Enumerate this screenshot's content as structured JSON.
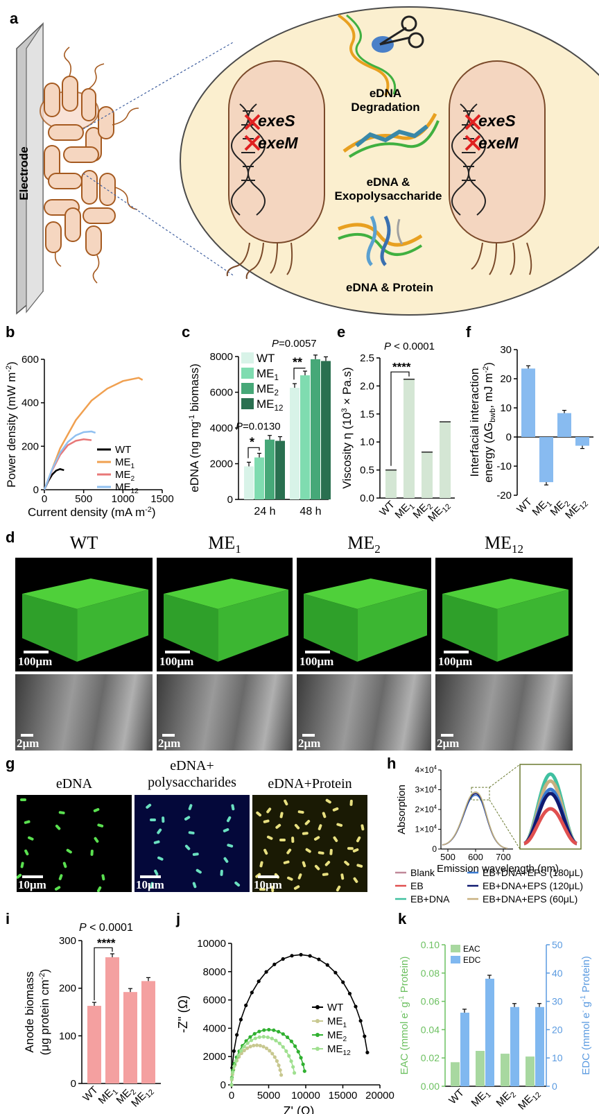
{
  "panels": {
    "a": "a",
    "b": "b",
    "c": "c",
    "d": "d",
    "e": "e",
    "f": "f",
    "g": "g",
    "h": "h",
    "i": "i",
    "j": "j",
    "k": "k"
  },
  "panel_a": {
    "electrode_label": "Electrode",
    "gene1": "exeS",
    "gene2": "exeM",
    "mech1_line1": "eDNA",
    "mech1_line2": "Degradation",
    "mech2_line1": "eDNA &",
    "mech2_line2": "Exopolysaccharide",
    "mech3": "eDNA & Protein"
  },
  "chart_b": {
    "type": "line",
    "ylabel": "Power density (mW m",
    "ylabel_sup": "-2",
    "xlabel": "Current density (mA m",
    "xlabel_sup": "-2",
    "yticks": [
      "0",
      "200",
      "400",
      "600"
    ],
    "xticks": [
      "0",
      "500",
      "1000",
      "1500"
    ],
    "ylim": [
      0,
      600
    ],
    "xlim": [
      0,
      1500
    ],
    "series": [
      {
        "name": "WT",
        "color": "#000000",
        "x": [
          0,
          50,
          100,
          150,
          200,
          250
        ],
        "y": [
          0,
          40,
          70,
          88,
          95,
          90
        ]
      },
      {
        "name": "ME",
        "sub": "1",
        "color": "#f0a050",
        "x": [
          0,
          200,
          400,
          600,
          800,
          1000,
          1200,
          1250
        ],
        "y": [
          0,
          190,
          320,
          410,
          465,
          500,
          515,
          505
        ]
      },
      {
        "name": "ME",
        "sub": "2",
        "color": "#e87878",
        "x": [
          0,
          100,
          200,
          300,
          400,
          500,
          600
        ],
        "y": [
          0,
          90,
          160,
          205,
          225,
          232,
          228
        ]
      },
      {
        "name": "ME",
        "sub": "12",
        "color": "#90c0f0",
        "x": [
          0,
          100,
          200,
          300,
          400,
          500,
          600,
          650
        ],
        "y": [
          0,
          95,
          170,
          220,
          250,
          265,
          268,
          262
        ]
      }
    ]
  },
  "chart_c": {
    "type": "bar",
    "ylabel": "eDNA (ng mg",
    "ylabel_sup": "-1",
    "ylabel_end": " biomass)",
    "categories": [
      "24 h",
      "48 h"
    ],
    "yticks": [
      "0",
      "2000",
      "4000",
      "6000",
      "8000"
    ],
    "ylim": [
      0,
      8000
    ],
    "series": [
      {
        "name": "WT",
        "color": "#d8f3e8",
        "values": [
          1850,
          6250
        ]
      },
      {
        "name": "ME",
        "sub": "1",
        "color": "#7fdcb0",
        "values": [
          2350,
          6950
        ]
      },
      {
        "name": "ME",
        "sub": "2",
        "color": "#46a878",
        "values": [
          3350,
          7850
        ]
      },
      {
        "name": "ME",
        "sub": "12",
        "color": "#2a7050",
        "values": [
          3280,
          7750
        ]
      }
    ],
    "p1": "P",
    "p1_val": "=0.0130",
    "p2": "P",
    "p2_val": "=0.0057",
    "sig1": "*",
    "sig2": "**"
  },
  "chart_e": {
    "type": "bar",
    "ylabel": "Viscosity η (10",
    "ylabel_sup": "3",
    "ylabel_end": " × Pa.s)",
    "categories": [
      {
        "t": "WT",
        "s": ""
      },
      {
        "t": "ME",
        "s": "1"
      },
      {
        "t": "ME",
        "s": "2"
      },
      {
        "t": "ME",
        "s": "12"
      }
    ],
    "values": [
      0.5,
      2.12,
      0.82,
      1.36
    ],
    "yticks": [
      "0.0",
      "0.5",
      "1.0",
      "1.5",
      "2.0",
      "2.5"
    ],
    "ylim": [
      0,
      2.5
    ],
    "color": "#d4e6d4",
    "p": "P",
    "p_val": " < 0.0001",
    "sig": "****"
  },
  "chart_f": {
    "type": "bar",
    "ylabel1": "Interfacial interaction",
    "ylabel2a": "energy (ΔG",
    "ylabel2sub": "bwb",
    "ylabel2b": ", mJ m",
    "ylabel2sup": "-2",
    "ylabel2c": ")",
    "categories": [
      {
        "t": "WT",
        "s": ""
      },
      {
        "t": "ME",
        "s": "1"
      },
      {
        "t": "ME",
        "s": "2"
      },
      {
        "t": "ME",
        "s": "12"
      }
    ],
    "values": [
      23.5,
      -15.5,
      8.2,
      -3
    ],
    "yticks": [
      "-20",
      "-10",
      "0",
      "10",
      "20",
      "30"
    ],
    "ylim": [
      -20,
      30
    ],
    "color": "#88bbf0"
  },
  "panel_d": {
    "titles": [
      {
        "t": "WT",
        "s": ""
      },
      {
        "t": "ME",
        "s": "1"
      },
      {
        "t": "ME",
        "s": "2"
      },
      {
        "t": "ME",
        "s": "12"
      }
    ],
    "scale_top": "100μm",
    "scale_bottom": "2μm"
  },
  "panel_g": {
    "titles": [
      "eDNA",
      "eDNA+\npolysaccharides",
      "eDNA+Protein"
    ],
    "title2_line1": "eDNA+",
    "title2_line2": "polysaccharides",
    "scale": "10μm"
  },
  "chart_h": {
    "type": "line",
    "ylabel": "Absorption",
    "xlabel": "Emission wavelength (nm)",
    "yticks": [
      "0",
      "1×10",
      "2×10",
      "3×10",
      "4×10"
    ],
    "ytick_sup": "4",
    "xticks": [
      "500",
      "600",
      "700"
    ],
    "legend": [
      {
        "name": "Blank",
        "color": "#c08898"
      },
      {
        "name": "EB+DNA+EPS (180μL)",
        "color": "#3a7ad0"
      },
      {
        "name": "EB",
        "color": "#e05050"
      },
      {
        "name": "EB+DNA+EPS (120μL)",
        "color": "#101a70"
      },
      {
        "name": "EB+DNA",
        "color": "#40c0a0"
      },
      {
        "name": "EB+DNA+EPS (60μL)",
        "color": "#c8b080"
      }
    ]
  },
  "chart_i": {
    "type": "bar",
    "ylabel1": "Anode biomass",
    "ylabel2": "(μg protein cm",
    "ylabel2_sup": "-2",
    "ylabel2_end": ")",
    "categories": [
      {
        "t": "WT",
        "s": ""
      },
      {
        "t": "ME",
        "s": "1"
      },
      {
        "t": "ME",
        "s": "2"
      },
      {
        "t": "ME",
        "s": "12"
      }
    ],
    "values": [
      163,
      265,
      192,
      215
    ],
    "yticks": [
      "0",
      "100",
      "200",
      "300"
    ],
    "ylim": [
      0,
      300
    ],
    "color": "#f4a0a0",
    "p": "P",
    "p_val": "  < 0.0001",
    "sig": "****"
  },
  "chart_j": {
    "type": "line",
    "ylabel": "-Z'' (Ω)",
    "xlabel": "Z' (Ω)",
    "yticks": [
      "0",
      "2000",
      "4000",
      "6000",
      "8000",
      "10000"
    ],
    "xticks": [
      "0",
      "5000",
      "10000",
      "15000",
      "20000"
    ],
    "series": [
      {
        "name": "WT",
        "sub": "",
        "color": "#000000",
        "cx": 9300,
        "r": 9300,
        "h": 9200
      },
      {
        "name": "ME",
        "sub": "1",
        "color": "#c8c890",
        "cx": 3400,
        "r": 3400,
        "h": 2800
      },
      {
        "name": "ME",
        "sub": "2",
        "color": "#30b030",
        "cx": 5000,
        "r": 5000,
        "h": 3900
      },
      {
        "name": "ME",
        "sub": "12",
        "color": "#a0e090",
        "cx": 4300,
        "r": 4300,
        "h": 3400
      }
    ]
  },
  "chart_k": {
    "type": "bar",
    "ylabel_left": "EAC (mmol e",
    "ylabel_left_sup": "-",
    "ylabel_left_mid": " g",
    "ylabel_left_sup2": "-1",
    "ylabel_left_end": " Protein)",
    "ylabel_right": "EDC (mmol e",
    "ylabel_right_end": " g",
    "ylabel_right_tail": " Protein)",
    "categories": [
      {
        "t": "WT",
        "s": ""
      },
      {
        "t": "ME",
        "s": "1"
      },
      {
        "t": "ME",
        "s": "2"
      },
      {
        "t": "ME",
        "s": "12"
      }
    ],
    "eac": [
      0.017,
      0.025,
      0.023,
      0.021
    ],
    "edc": [
      26,
      38,
      28,
      28
    ],
    "yticks_left": [
      "0.00",
      "0.02",
      "0.04",
      "0.06",
      "0.08",
      "0.10"
    ],
    "yticks_right": [
      "0",
      "10",
      "20",
      "30",
      "40",
      "50"
    ],
    "legend": [
      {
        "name": "EAC",
        "color": "#a8d8a0"
      },
      {
        "name": "EDC",
        "color": "#80b8f0"
      }
    ],
    "left_color": "#6cc060",
    "right_color": "#5a9ae0"
  }
}
